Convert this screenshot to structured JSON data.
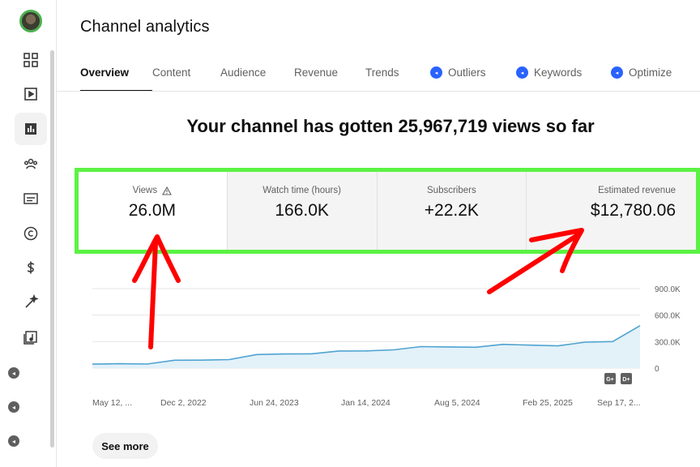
{
  "page": {
    "title": "Channel analytics"
  },
  "tabs": [
    {
      "label": "Overview",
      "active": true,
      "badge": false
    },
    {
      "label": "Content",
      "active": false,
      "badge": false
    },
    {
      "label": "Audience",
      "active": false,
      "badge": false
    },
    {
      "label": "Revenue",
      "active": false,
      "badge": false
    },
    {
      "label": "Trends",
      "active": false,
      "badge": false
    },
    {
      "label": "Outliers",
      "active": false,
      "badge": true
    },
    {
      "label": "Keywords",
      "active": false,
      "badge": true
    },
    {
      "label": "Optimize",
      "active": false,
      "badge": true
    }
  ],
  "headline": "Your channel has gotten 25,967,719 views so far",
  "metrics": [
    {
      "label": "Views",
      "value": "26.0M",
      "icon": "warning-icon"
    },
    {
      "label": "Watch time (hours)",
      "value": "166.0K"
    },
    {
      "label": "Subscribers",
      "value": "+22.2K"
    },
    {
      "label": "Estimated revenue",
      "value": "$12,780.06"
    }
  ],
  "chart_data": {
    "type": "area",
    "x_tick_labels": [
      "May 12, ...",
      "Dec 2, 2022",
      "Jun 24, 2023",
      "Jan 14, 2024",
      "Aug 5, 2024",
      "Feb 25, 2025",
      "Sep 17, 2..."
    ],
    "y_tick_labels": [
      "0",
      "300.0K",
      "600.0K",
      "900.0K"
    ],
    "ylim": [
      0,
      900000
    ],
    "series": [
      {
        "values": [
          45000,
          50000,
          60000,
          75000,
          90000,
          110000,
          140000,
          160000,
          175000,
          180000,
          195000,
          220000,
          230000,
          240000,
          250000,
          255000,
          260000,
          265000,
          280000,
          300000,
          480000
        ]
      }
    ],
    "line_color": "#4fa3d1",
    "fill_color": "#e3f1f9",
    "grid": true,
    "buttons": [
      "G+",
      "D+"
    ]
  },
  "buttons": {
    "see_more": "See more"
  },
  "colors": {
    "accent": "#2962ff",
    "highlight": "#5cf244",
    "annotation": "#ff0000"
  }
}
